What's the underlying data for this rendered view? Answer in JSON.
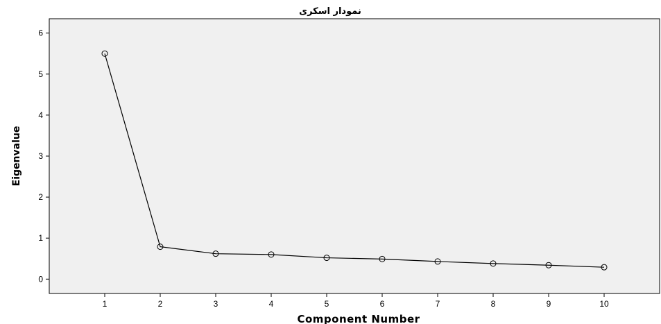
{
  "chart_data": {
    "type": "line",
    "title": "نمودار اسکری",
    "xlabel": "Component Number",
    "ylabel": "Eigenvalue",
    "x": [
      1,
      2,
      3,
      4,
      5,
      6,
      7,
      8,
      9,
      10
    ],
    "series": [
      {
        "values": [
          5.5,
          0.79,
          0.62,
          0.6,
          0.52,
          0.49,
          0.43,
          0.38,
          0.34,
          0.29
        ]
      }
    ],
    "xticks": [
      "1",
      "2",
      "3",
      "4",
      "5",
      "6",
      "7",
      "8",
      "9",
      "10"
    ],
    "yticks": [
      "0",
      "1",
      "2",
      "3",
      "4",
      "5",
      "6"
    ],
    "xlim": [
      0,
      11
    ],
    "ylim": [
      -0.35,
      6.35
    ],
    "grid": false,
    "legend": "none",
    "colors": {
      "plot_background": "#f0f0f0",
      "line": "#000000",
      "marker": "#000000"
    }
  }
}
